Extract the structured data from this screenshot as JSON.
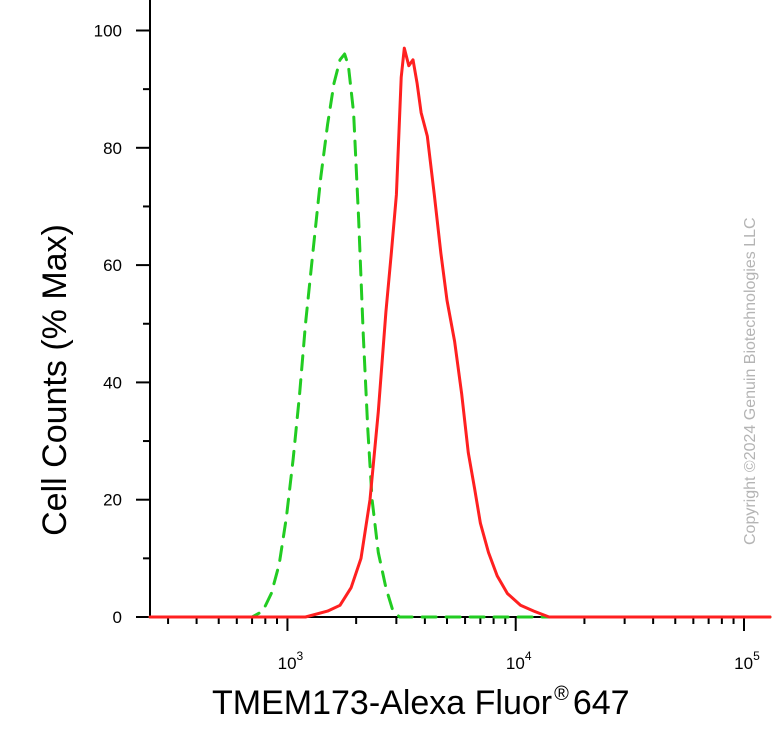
{
  "chart_data": {
    "type": "line",
    "title": "",
    "xlabel_main": "TMEM173-Alexa Fluor",
    "xlabel_sup": "®",
    "xlabel_tail": "647",
    "ylabel": "Cell Counts (% Max)",
    "x_scale": "log",
    "xlim": [
      250,
      130000
    ],
    "ylim": [
      0,
      105
    ],
    "y_ticks": [
      "0",
      "20",
      "40",
      "60",
      "80",
      "100"
    ],
    "x_ticks": [
      {
        "value": 1000,
        "base": "10",
        "exp": "3"
      },
      {
        "value": 10000,
        "base": "10",
        "exp": "4"
      },
      {
        "value": 100000,
        "base": "10",
        "exp": "5"
      }
    ],
    "grid": false,
    "legend": "none",
    "copyright": "Copyright ©2024 Genuin Biotechnologies LLC",
    "series": [
      {
        "color": "#22cc22",
        "style": "dashed",
        "x": [
          250,
          700,
          780,
          850,
          920,
          990,
          1060,
          1130,
          1200,
          1300,
          1400,
          1500,
          1600,
          1700,
          1780,
          1850,
          1950,
          2050,
          2150,
          2250,
          2350,
          2500,
          2700,
          2900,
          3100,
          3500,
          6000,
          130000
        ],
        "y": [
          0,
          0,
          1,
          4,
          9,
          17,
          27,
          38,
          50,
          63,
          75,
          84,
          91,
          95,
          96,
          94,
          86,
          68,
          48,
          32,
          20,
          11,
          5,
          1,
          0,
          0,
          0,
          0
        ]
      },
      {
        "color": "#ff2020",
        "style": "solid",
        "x": [
          250,
          1200,
          1500,
          1700,
          1900,
          2100,
          2300,
          2500,
          2700,
          2850,
          3000,
          3150,
          3250,
          3400,
          3550,
          3700,
          3850,
          4100,
          4400,
          4700,
          5000,
          5400,
          5800,
          6200,
          6600,
          7000,
          7600,
          8300,
          9200,
          10500,
          12000,
          14000,
          17000,
          130000
        ],
        "y": [
          0,
          0,
          1,
          2,
          5,
          10,
          20,
          35,
          52,
          62,
          72,
          92,
          97,
          94,
          95,
          91,
          86,
          82,
          72,
          62,
          54,
          47,
          38,
          28,
          22,
          16,
          11,
          7,
          4,
          2,
          1,
          0,
          0,
          0
        ]
      }
    ]
  }
}
